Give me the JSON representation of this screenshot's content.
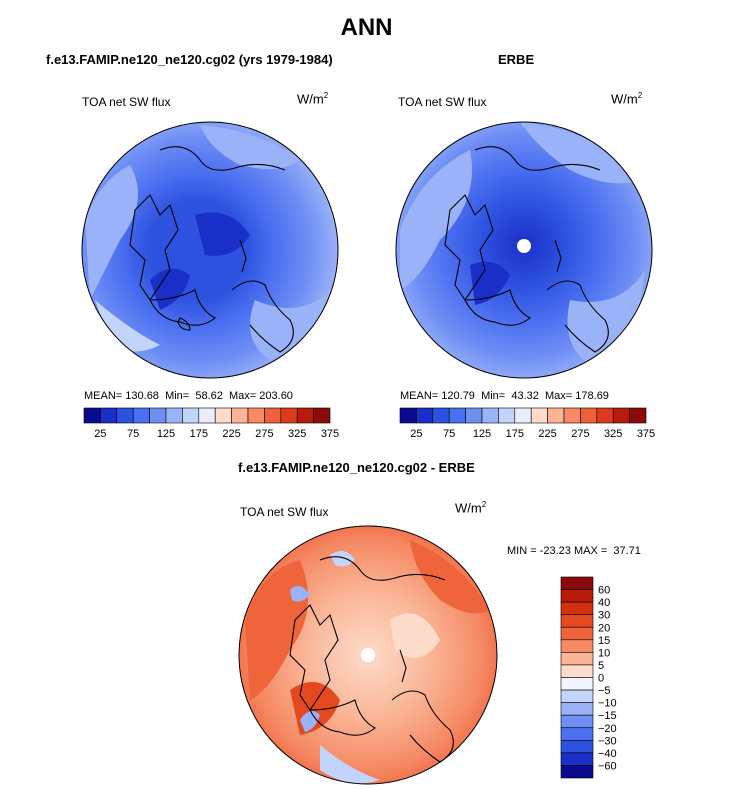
{
  "title": "ANN",
  "panels": [
    {
      "title": "f.e13.FAMIP.ne120_ne120.cg02 (yrs 1979-1984)",
      "field": "TOA net SW flux",
      "units": "W/m",
      "units_exp": "2",
      "stats": {
        "mean_label": "MEAN=",
        "mean": "130.68",
        "min_label": "Min=",
        "min": "58.62",
        "max_label": "Max=",
        "max": "203.60"
      }
    },
    {
      "title": "ERBE",
      "field": "TOA net SW flux",
      "units": "W/m",
      "units_exp": "2",
      "stats": {
        "mean_label": "MEAN=",
        "mean": "120.79",
        "min_label": "Min=",
        "min": "43.32",
        "max_label": "Max=",
        "max": "178.69"
      }
    },
    {
      "title": "f.e13.FAMIP.ne120_ne120.cg02 - ERBE",
      "field": "TOA net SW flux",
      "units": "W/m",
      "units_exp": "2",
      "stats_text": "MIN = -23.23 MAX =  37.71"
    }
  ],
  "chart_data": [
    {
      "type": "heatmap",
      "projection": "north polar stereographic",
      "colorbar": {
        "orientation": "horizontal",
        "levels": [
          25,
          50,
          75,
          100,
          125,
          150,
          175,
          200,
          225,
          250,
          275,
          300,
          325,
          350,
          375
        ],
        "tick_labels": [
          "25",
          "75",
          "125",
          "175",
          "225",
          "275",
          "325",
          "375"
        ],
        "colors": [
          "#0a0a91",
          "#1a2fc7",
          "#2d52e0",
          "#4a6ff0",
          "#6f8ff5",
          "#9ab2f8",
          "#c3d4fb",
          "#e8eefc",
          "#fddccc",
          "#fbb596",
          "#f98a63",
          "#f0603b",
          "#dc3a1e",
          "#b81a0b",
          "#8c0a0a"
        ]
      },
      "stats": {
        "mean": 130.68,
        "min": 58.62,
        "max": 203.6
      }
    },
    {
      "type": "heatmap",
      "projection": "north polar stereographic",
      "colorbar": {
        "orientation": "horizontal",
        "levels": [
          25,
          50,
          75,
          100,
          125,
          150,
          175,
          200,
          225,
          250,
          275,
          300,
          325,
          350,
          375
        ],
        "tick_labels": [
          "25",
          "75",
          "125",
          "175",
          "225",
          "275",
          "325",
          "375"
        ],
        "colors": [
          "#0a0a91",
          "#1a2fc7",
          "#2d52e0",
          "#4a6ff0",
          "#6f8ff5",
          "#9ab2f8",
          "#c3d4fb",
          "#e8eefc",
          "#fddccc",
          "#fbb596",
          "#f98a63",
          "#f0603b",
          "#dc3a1e",
          "#b81a0b",
          "#8c0a0a"
        ]
      },
      "stats": {
        "mean": 120.79,
        "min": 43.32,
        "max": 178.69
      }
    },
    {
      "type": "heatmap",
      "projection": "north polar stereographic",
      "colorbar": {
        "orientation": "vertical",
        "levels_top_to_bottom": [
          60,
          40,
          30,
          20,
          15,
          10,
          5,
          0,
          -5,
          -10,
          -15,
          -20,
          -30,
          -40,
          -60
        ],
        "tick_labels": [
          "60",
          "40",
          "30",
          "20",
          "15",
          "10",
          "5",
          "0",
          "−5",
          "−10",
          "−15",
          "−20",
          "−30",
          "−40",
          "−60"
        ],
        "colors_top_to_bottom": [
          "#8c0a0a",
          "#b81a0b",
          "#d4300f",
          "#e4481e",
          "#f0643c",
          "#f58a65",
          "#fab595",
          "#fddccc",
          "#f2f5fe",
          "#c3d4fb",
          "#9ab2f8",
          "#6f8ff5",
          "#4a6ff0",
          "#2d52e0",
          "#1a2fc7",
          "#0a0a91"
        ]
      },
      "stats": {
        "min": -23.23,
        "max": 37.71
      }
    }
  ]
}
